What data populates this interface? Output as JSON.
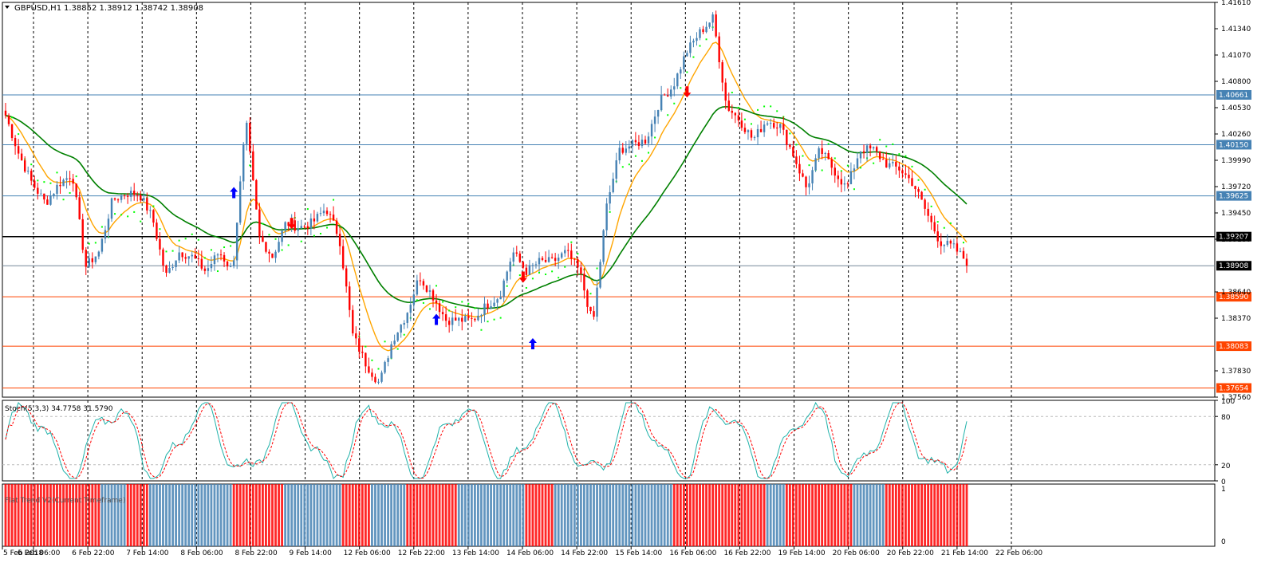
{
  "header": {
    "symbol": "GBPUSD,H1",
    "ohlc": "1.38852 1.38912 1.38742 1.38908"
  },
  "stoch_label": "Stoch(5,3,3) 34.7758 31.5790",
  "trend_label": "Flat Trend V2(Current Timeframe)",
  "colors": {
    "bull": "#4682b4",
    "bear": "#ff0000",
    "ma_fast": "#ffa500",
    "ma_slow": "#008000",
    "psar": "#00ff00",
    "stoch_main": "#20b2aa",
    "stoch_signal": "#ff0000",
    "hline_blue": "#4682b4",
    "hline_red": "#ff4500",
    "hline_black": "#000000",
    "hline_bid": "#778899"
  },
  "chart_data": [
    {
      "type": "candlestick",
      "title": "GBPUSD,H1",
      "ylim": [
        1.3756,
        1.4161
      ],
      "y_ticks": [
        1.4161,
        1.4134,
        1.4107,
        1.408,
        1.4053,
        1.4026,
        1.3999,
        1.3972,
        1.3945,
        1.3918,
        1.3864,
        1.3837,
        1.3783,
        1.3756
      ],
      "x_ticks": [
        "5 Feb 2018",
        "6 Feb 06:00",
        "6 Feb 22:00",
        "7 Feb 14:00",
        "8 Feb 06:00",
        "8 Feb 22:00",
        "9 Feb 14:00",
        "12 Feb 06:00",
        "12 Feb 22:00",
        "13 Feb 14:00",
        "14 Feb 06:00",
        "14 Feb 22:00",
        "15 Feb 14:00",
        "16 Feb 06:00",
        "16 Feb 22:00",
        "19 Feb 14:00",
        "20 Feb 06:00",
        "20 Feb 22:00",
        "21 Feb 14:00",
        "22 Feb 06:00"
      ],
      "close_path": [
        1.4045,
        1.4005,
        1.3975,
        1.3955,
        1.3975,
        1.3985,
        1.389,
        1.3905,
        1.3958,
        1.3965,
        1.3965,
        1.394,
        1.388,
        1.3905,
        1.39,
        1.3885,
        1.3905,
        1.3885,
        1.404,
        1.392,
        1.39,
        1.3935,
        1.393,
        1.3935,
        1.395,
        1.392,
        1.382,
        1.379,
        1.377,
        1.3815,
        1.384,
        1.388,
        1.386,
        1.3835,
        1.3835,
        1.3835,
        1.385,
        1.386,
        1.3905,
        1.3885,
        1.3895,
        1.3895,
        1.3905,
        1.3885,
        1.383,
        1.395,
        1.401,
        1.4015,
        1.402,
        1.406,
        1.4075,
        1.411,
        1.413,
        1.4145,
        1.4055,
        1.404,
        1.402,
        1.404,
        1.4035,
        1.4005,
        1.397,
        1.401,
        1.399,
        1.397,
        1.401,
        1.401,
        1.3995,
        1.399,
        1.3975,
        1.3945,
        1.3915,
        1.391,
        1.3895
      ],
      "hlines": [
        {
          "value": 1.40661,
          "label": "1.40661",
          "kind": "blue"
        },
        {
          "value": 1.4015,
          "label": "1.40150",
          "kind": "blue"
        },
        {
          "value": 1.39625,
          "label": "1.39625",
          "kind": "blue"
        },
        {
          "value": 1.39207,
          "label": "1.39207",
          "kind": "black"
        },
        {
          "value": 1.38908,
          "label": "1.38908",
          "kind": "bid"
        },
        {
          "value": 1.3859,
          "label": "1.38590",
          "kind": "red"
        },
        {
          "value": 1.38083,
          "label": "1.38083",
          "kind": "red"
        },
        {
          "value": 1.37654,
          "label": "1.37654",
          "kind": "red"
        }
      ],
      "arrows": [
        {
          "bar": 0.24,
          "value": 1.3965,
          "dir": "up"
        },
        {
          "bar": 0.3,
          "value": 1.3935,
          "dir": "down"
        },
        {
          "bar": 0.45,
          "value": 1.3835,
          "dir": "up"
        },
        {
          "bar": 0.54,
          "value": 1.388,
          "dir": "down"
        },
        {
          "bar": 0.55,
          "value": 1.381,
          "dir": "up"
        },
        {
          "bar": 0.71,
          "value": 1.407,
          "dir": "down"
        }
      ]
    },
    {
      "type": "line",
      "title": "Stoch(5,3,3) 34.7758 31.5790",
      "ylim": [
        0,
        100
      ],
      "y_ticks": [
        100,
        80,
        20,
        0
      ],
      "levels": [
        80,
        20
      ]
    },
    {
      "type": "bar",
      "title": "Flat Trend V2(Current Timeframe)",
      "ylim": [
        0,
        1
      ],
      "y_ticks": [
        1,
        0
      ],
      "segments": [
        {
          "end": 0.1,
          "state": "bear"
        },
        {
          "end": 0.125,
          "state": "bull"
        },
        {
          "end": 0.15,
          "state": "bear"
        },
        {
          "end": 0.235,
          "state": "bull"
        },
        {
          "end": 0.29,
          "state": "bear"
        },
        {
          "end": 0.35,
          "state": "bull"
        },
        {
          "end": 0.38,
          "state": "bear"
        },
        {
          "end": 0.415,
          "state": "bull"
        },
        {
          "end": 0.47,
          "state": "bear"
        },
        {
          "end": 0.54,
          "state": "bull"
        },
        {
          "end": 0.57,
          "state": "bear"
        },
        {
          "end": 0.695,
          "state": "bull"
        },
        {
          "end": 0.79,
          "state": "bear"
        },
        {
          "end": 0.81,
          "state": "bull"
        },
        {
          "end": 0.88,
          "state": "bear"
        },
        {
          "end": 0.915,
          "state": "bull"
        },
        {
          "end": 1.0,
          "state": "bear"
        }
      ]
    }
  ]
}
